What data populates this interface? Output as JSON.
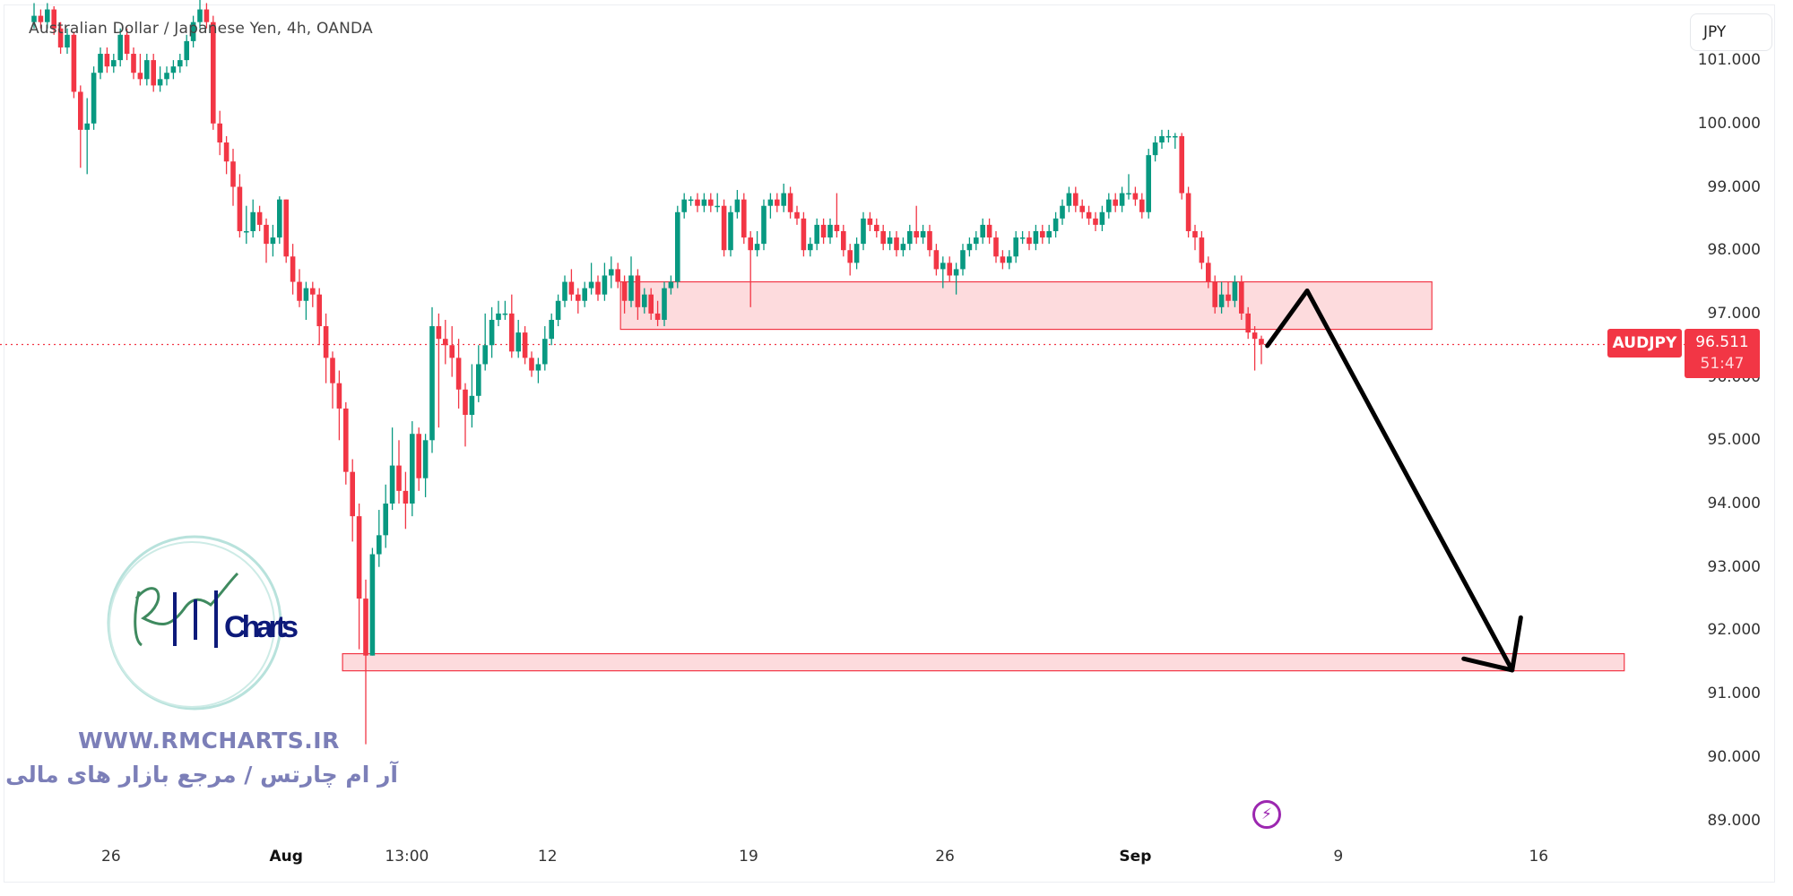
{
  "header": {
    "title": "Australian Dollar / Japanese Yen, 4h, OANDA",
    "currency_button": "JPY"
  },
  "price_marker": {
    "symbol": "AUDJPY",
    "price": "96.511",
    "countdown": "51:47",
    "color": "#f23645"
  },
  "watermark": {
    "logo_text": "Charts",
    "website": "WWW.RMCHARTS.IR",
    "tagline": "آر ام چارتس / مرجع بازار های مالی"
  },
  "icons": {
    "alert": "lightning-icon"
  },
  "chart_data": {
    "type": "candlestick",
    "symbol": "AUDJPY",
    "interval": "4h",
    "up_color": "#089981",
    "down_color": "#f23645",
    "ylim": [
      88.7,
      102.0
    ],
    "y_ticks": [
      "101.000",
      "100.000",
      "99.000",
      "98.000",
      "97.000",
      "96.000",
      "95.000",
      "94.000",
      "93.000",
      "92.000",
      "91.000",
      "90.000",
      "89.000"
    ],
    "x_ticks": [
      {
        "label": "26",
        "bar": 11.6,
        "bold": false
      },
      {
        "label": "Aug",
        "bar": 38,
        "bold": true
      },
      {
        "label": "13:00",
        "bar": 56.2,
        "bold": false
      },
      {
        "label": "12",
        "bar": 77.4,
        "bold": false
      },
      {
        "label": "19",
        "bar": 107.7,
        "bold": false
      },
      {
        "label": "26",
        "bar": 137.3,
        "bold": false
      },
      {
        "label": "Sep",
        "bar": 166,
        "bold": true
      },
      {
        "label": "9",
        "bar": 196.6,
        "bold": false
      },
      {
        "label": "16",
        "bar": 226.8,
        "bold": false
      }
    ],
    "last_price": 96.511,
    "zones": [
      {
        "from_bar": 88.4,
        "to_bar": 210.7,
        "top": 97.5,
        "bottom": 96.75,
        "color": "#f23645"
      },
      {
        "from_bar": 46.5,
        "to_bar": 239.7,
        "top": 91.63,
        "bottom": 91.36,
        "color": "#f23645"
      }
    ],
    "projection_arrow": {
      "path": [
        [
          185.9,
          96.49
        ],
        [
          191.9,
          97.36
        ],
        [
          222.8,
          91.37
        ]
      ],
      "head": [
        [
          215.5,
          91.55
        ],
        [
          222.8,
          91.37
        ],
        [
          224.1,
          92.2
        ]
      ],
      "color": "#000000"
    },
    "ohlc": [
      [
        101.6,
        101.9,
        101.5,
        101.7
      ],
      [
        101.7,
        101.8,
        101.5,
        101.6
      ],
      [
        101.6,
        101.9,
        101.5,
        101.8
      ],
      [
        101.8,
        101.85,
        101.4,
        101.5
      ],
      [
        101.5,
        101.6,
        101.1,
        101.2
      ],
      [
        101.2,
        101.5,
        101.1,
        101.4
      ],
      [
        101.4,
        101.45,
        100.4,
        100.5
      ],
      [
        100.5,
        100.6,
        99.3,
        99.9
      ],
      [
        99.9,
        100.4,
        99.2,
        100.0
      ],
      [
        100.0,
        100.9,
        99.9,
        100.8
      ],
      [
        100.8,
        101.2,
        100.7,
        101.1
      ],
      [
        101.1,
        101.2,
        100.8,
        100.9
      ],
      [
        100.9,
        101.1,
        100.8,
        101.0
      ],
      [
        101.0,
        101.5,
        100.9,
        101.4
      ],
      [
        101.4,
        101.5,
        101.0,
        101.1
      ],
      [
        101.1,
        101.2,
        100.7,
        100.8
      ],
      [
        100.8,
        101.1,
        100.6,
        100.7
      ],
      [
        100.7,
        101.1,
        100.6,
        101.0
      ],
      [
        101.0,
        101.1,
        100.5,
        100.6
      ],
      [
        100.6,
        100.9,
        100.5,
        100.7
      ],
      [
        100.7,
        100.9,
        100.6,
        100.8
      ],
      [
        100.8,
        101.0,
        100.7,
        100.9
      ],
      [
        100.9,
        101.1,
        100.8,
        101.0
      ],
      [
        101.0,
        101.4,
        100.9,
        101.3
      ],
      [
        101.3,
        101.7,
        101.2,
        101.6
      ],
      [
        101.6,
        102.0,
        101.5,
        101.8
      ],
      [
        101.8,
        101.9,
        101.5,
        101.6
      ],
      [
        101.6,
        101.7,
        99.9,
        100.0
      ],
      [
        100.0,
        100.2,
        99.5,
        99.7
      ],
      [
        99.7,
        99.8,
        99.2,
        99.4
      ],
      [
        99.4,
        99.6,
        98.7,
        99.0
      ],
      [
        99.0,
        99.2,
        98.2,
        98.3
      ],
      [
        98.3,
        98.7,
        98.1,
        98.3
      ],
      [
        98.3,
        98.8,
        98.2,
        98.6
      ],
      [
        98.6,
        98.7,
        98.3,
        98.4
      ],
      [
        98.4,
        98.5,
        97.8,
        98.1
      ],
      [
        98.1,
        98.4,
        97.9,
        98.2
      ],
      [
        98.2,
        98.85,
        98.1,
        98.8
      ],
      [
        98.8,
        98.8,
        97.8,
        97.9
      ],
      [
        97.9,
        98.1,
        97.3,
        97.5
      ],
      [
        97.5,
        97.7,
        97.1,
        97.2
      ],
      [
        97.2,
        97.5,
        96.9,
        97.4
      ],
      [
        97.4,
        97.5,
        97.1,
        97.3
      ],
      [
        97.3,
        97.4,
        96.5,
        96.8
      ],
      [
        96.8,
        97.0,
        95.9,
        96.3
      ],
      [
        96.3,
        96.4,
        95.5,
        95.9
      ],
      [
        95.9,
        96.1,
        95.0,
        95.5
      ],
      [
        95.5,
        95.6,
        94.3,
        94.5
      ],
      [
        94.5,
        94.7,
        93.4,
        93.8
      ],
      [
        93.8,
        94.0,
        91.7,
        92.5
      ],
      [
        92.5,
        92.8,
        90.2,
        91.6
      ],
      [
        91.6,
        93.3,
        91.6,
        93.2
      ],
      [
        93.2,
        93.9,
        93.0,
        93.5
      ],
      [
        93.5,
        94.3,
        93.3,
        94.0
      ],
      [
        94.0,
        95.2,
        93.9,
        94.6
      ],
      [
        94.6,
        95.0,
        94.0,
        94.2
      ],
      [
        94.2,
        94.5,
        93.6,
        94.0
      ],
      [
        94.0,
        95.3,
        93.8,
        95.1
      ],
      [
        95.1,
        95.2,
        94.2,
        94.4
      ],
      [
        94.4,
        95.1,
        94.1,
        95.0
      ],
      [
        95.0,
        97.1,
        94.8,
        96.8
      ],
      [
        96.8,
        97.0,
        95.2,
        96.6
      ],
      [
        96.6,
        96.9,
        96.2,
        96.5
      ],
      [
        96.5,
        96.8,
        96.0,
        96.3
      ],
      [
        96.3,
        96.6,
        95.5,
        95.8
      ],
      [
        95.8,
        95.9,
        94.9,
        95.4
      ],
      [
        95.4,
        96.2,
        95.2,
        95.7
      ],
      [
        95.7,
        96.5,
        95.6,
        96.2
      ],
      [
        96.2,
        97.0,
        96.1,
        96.5
      ],
      [
        96.5,
        97.1,
        96.3,
        96.9
      ],
      [
        96.9,
        97.2,
        96.8,
        97.0
      ],
      [
        97.0,
        97.2,
        96.9,
        97.0
      ],
      [
        97.0,
        97.3,
        96.3,
        96.4
      ],
      [
        96.4,
        96.9,
        96.3,
        96.7
      ],
      [
        96.7,
        96.8,
        96.2,
        96.3
      ],
      [
        96.3,
        96.4,
        96.0,
        96.1
      ],
      [
        96.1,
        96.3,
        95.9,
        96.2
      ],
      [
        96.2,
        96.8,
        96.1,
        96.6
      ],
      [
        96.6,
        97.0,
        96.5,
        96.9
      ],
      [
        96.9,
        97.3,
        96.8,
        97.2
      ],
      [
        97.2,
        97.6,
        97.1,
        97.5
      ],
      [
        97.5,
        97.7,
        97.2,
        97.3
      ],
      [
        97.3,
        97.4,
        97.0,
        97.2
      ],
      [
        97.2,
        97.5,
        97.1,
        97.4
      ],
      [
        97.4,
        97.8,
        97.3,
        97.5
      ],
      [
        97.5,
        97.6,
        97.2,
        97.3
      ],
      [
        97.3,
        97.8,
        97.2,
        97.6
      ],
      [
        97.6,
        97.9,
        97.4,
        97.7
      ],
      [
        97.7,
        97.8,
        97.4,
        97.5
      ],
      [
        97.5,
        97.6,
        97.0,
        97.2
      ],
      [
        97.2,
        97.9,
        97.1,
        97.6
      ],
      [
        97.6,
        97.7,
        96.9,
        97.1
      ],
      [
        97.1,
        97.4,
        97.0,
        97.3
      ],
      [
        97.3,
        97.4,
        96.9,
        97.0
      ],
      [
        97.0,
        97.2,
        96.8,
        96.9
      ],
      [
        96.9,
        97.5,
        96.8,
        97.4
      ],
      [
        97.4,
        97.6,
        97.3,
        97.5
      ],
      [
        97.5,
        98.7,
        97.4,
        98.6
      ],
      [
        98.6,
        98.9,
        98.5,
        98.8
      ],
      [
        98.8,
        98.85,
        98.7,
        98.8
      ],
      [
        98.8,
        98.9,
        98.6,
        98.7
      ],
      [
        98.7,
        98.9,
        98.6,
        98.8
      ],
      [
        98.8,
        98.9,
        98.6,
        98.7
      ],
      [
        98.7,
        98.9,
        98.6,
        98.7
      ],
      [
        98.7,
        98.8,
        97.9,
        98.0
      ],
      [
        98.0,
        98.7,
        97.9,
        98.6
      ],
      [
        98.6,
        98.95,
        98.5,
        98.8
      ],
      [
        98.8,
        98.9,
        98.1,
        98.2
      ],
      [
        98.2,
        98.3,
        97.1,
        98.0
      ],
      [
        98.0,
        98.3,
        97.9,
        98.1
      ],
      [
        98.1,
        98.8,
        98.0,
        98.7
      ],
      [
        98.7,
        98.9,
        98.5,
        98.8
      ],
      [
        98.8,
        98.9,
        98.6,
        98.7
      ],
      [
        98.7,
        99.05,
        98.6,
        98.9
      ],
      [
        98.9,
        99.0,
        98.5,
        98.6
      ],
      [
        98.6,
        98.7,
        98.4,
        98.5
      ],
      [
        98.5,
        98.6,
        97.9,
        98.0
      ],
      [
        98.0,
        98.2,
        97.9,
        98.1
      ],
      [
        98.1,
        98.5,
        98.0,
        98.4
      ],
      [
        98.4,
        98.5,
        98.1,
        98.2
      ],
      [
        98.2,
        98.5,
        98.1,
        98.4
      ],
      [
        98.4,
        98.9,
        98.2,
        98.3
      ],
      [
        98.3,
        98.4,
        97.9,
        98.0
      ],
      [
        98.0,
        98.1,
        97.6,
        97.8
      ],
      [
        97.8,
        98.2,
        97.7,
        98.1
      ],
      [
        98.1,
        98.6,
        98.0,
        98.5
      ],
      [
        98.5,
        98.6,
        98.3,
        98.4
      ],
      [
        98.4,
        98.5,
        98.2,
        98.3
      ],
      [
        98.3,
        98.4,
        98.0,
        98.1
      ],
      [
        98.1,
        98.3,
        98.0,
        98.2
      ],
      [
        98.2,
        98.3,
        97.9,
        98.0
      ],
      [
        98.0,
        98.2,
        97.9,
        98.1
      ],
      [
        98.1,
        98.4,
        98.0,
        98.3
      ],
      [
        98.3,
        98.7,
        98.1,
        98.2
      ],
      [
        98.2,
        98.4,
        98.1,
        98.3
      ],
      [
        98.3,
        98.4,
        97.9,
        98.0
      ],
      [
        98.0,
        98.1,
        97.6,
        97.7
      ],
      [
        97.7,
        97.9,
        97.4,
        97.8
      ],
      [
        97.8,
        97.9,
        97.5,
        97.6
      ],
      [
        97.6,
        97.8,
        97.3,
        97.7
      ],
      [
        97.7,
        98.1,
        97.6,
        98.0
      ],
      [
        98.0,
        98.2,
        97.9,
        98.1
      ],
      [
        98.1,
        98.3,
        98.0,
        98.2
      ],
      [
        98.2,
        98.5,
        98.1,
        98.4
      ],
      [
        98.4,
        98.5,
        98.1,
        98.2
      ],
      [
        98.2,
        98.3,
        97.8,
        97.9
      ],
      [
        97.9,
        98.0,
        97.7,
        97.8
      ],
      [
        97.8,
        98.0,
        97.7,
        97.9
      ],
      [
        97.9,
        98.3,
        97.8,
        98.2
      ],
      [
        98.2,
        98.3,
        98.1,
        98.2
      ],
      [
        98.2,
        98.3,
        98.0,
        98.1
      ],
      [
        98.1,
        98.4,
        98.0,
        98.3
      ],
      [
        98.3,
        98.4,
        98.1,
        98.2
      ],
      [
        98.2,
        98.4,
        98.1,
        98.3
      ],
      [
        98.3,
        98.6,
        98.2,
        98.5
      ],
      [
        98.5,
        98.8,
        98.4,
        98.7
      ],
      [
        98.7,
        99.0,
        98.6,
        98.9
      ],
      [
        98.9,
        99.0,
        98.6,
        98.7
      ],
      [
        98.7,
        98.8,
        98.5,
        98.6
      ],
      [
        98.6,
        98.7,
        98.4,
        98.5
      ],
      [
        98.5,
        98.6,
        98.3,
        98.4
      ],
      [
        98.4,
        98.7,
        98.3,
        98.6
      ],
      [
        98.6,
        98.9,
        98.5,
        98.8
      ],
      [
        98.8,
        98.9,
        98.6,
        98.7
      ],
      [
        98.7,
        99.0,
        98.6,
        98.9
      ],
      [
        98.9,
        99.2,
        98.8,
        98.9
      ],
      [
        98.9,
        99.0,
        98.7,
        98.8
      ],
      [
        98.8,
        98.9,
        98.5,
        98.6
      ],
      [
        98.6,
        99.6,
        98.5,
        99.5
      ],
      [
        99.5,
        99.8,
        99.4,
        99.7
      ],
      [
        99.7,
        99.9,
        99.6,
        99.8
      ],
      [
        99.8,
        99.9,
        99.7,
        99.8
      ],
      [
        99.8,
        99.85,
        99.6,
        99.8
      ],
      [
        99.8,
        99.85,
        98.8,
        98.9
      ],
      [
        98.9,
        99.0,
        98.2,
        98.3
      ],
      [
        98.3,
        98.4,
        98.0,
        98.2
      ],
      [
        98.2,
        98.3,
        97.7,
        97.8
      ],
      [
        97.8,
        97.9,
        97.4,
        97.5
      ],
      [
        97.5,
        97.6,
        97.0,
        97.1
      ],
      [
        97.1,
        97.5,
        97.0,
        97.3
      ],
      [
        97.3,
        97.5,
        97.1,
        97.2
      ],
      [
        97.2,
        97.6,
        97.1,
        97.5
      ],
      [
        97.5,
        97.6,
        96.9,
        97.0
      ],
      [
        97.0,
        97.1,
        96.6,
        96.7
      ],
      [
        96.7,
        96.8,
        96.1,
        96.6
      ],
      [
        96.6,
        96.65,
        96.2,
        96.511
      ]
    ]
  }
}
